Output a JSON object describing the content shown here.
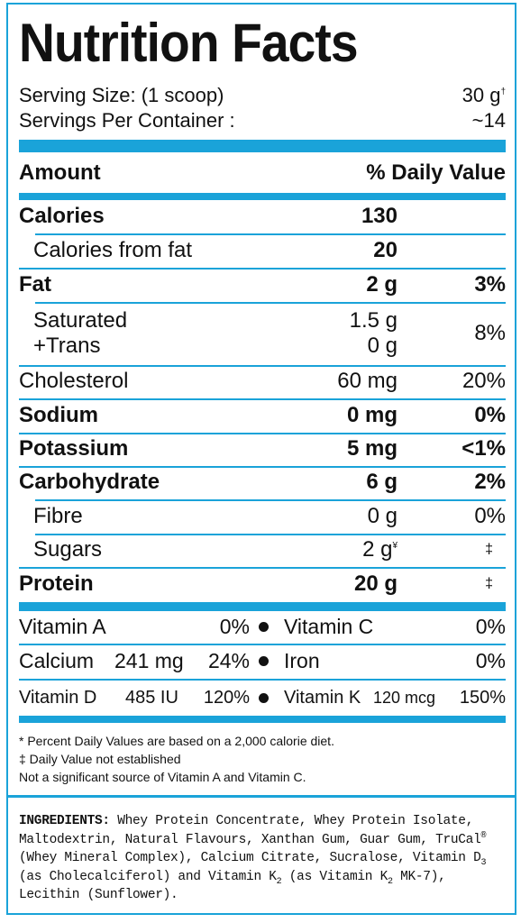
{
  "title": "Nutrition Facts",
  "serving": {
    "size_label": "Serving Size: (1 scoop)",
    "size_value": "30 g",
    "size_mark": "†",
    "per_container_label": "Servings Per Container :",
    "per_container_value": "~14"
  },
  "header": {
    "amount": "Amount",
    "daily_value": "% Daily Value"
  },
  "rows": {
    "calories": {
      "label": "Calories",
      "amount": "130"
    },
    "calories_fat": {
      "label": "Calories from fat",
      "amount": "20"
    },
    "fat": {
      "label": "Fat",
      "amount": "2 g",
      "dv": "3%"
    },
    "saturated": {
      "label": "Saturated",
      "amount": "1.5 g"
    },
    "trans": {
      "label": "+Trans",
      "amount": "0 g",
      "dv": "8%"
    },
    "cholesterol": {
      "label": "Cholesterol",
      "amount": "60 mg",
      "dv": "20%"
    },
    "sodium": {
      "label": "Sodium",
      "amount": "0 mg",
      "dv": "0%"
    },
    "potassium": {
      "label": "Potassium",
      "amount": "5 mg",
      "dv": "<1%"
    },
    "carbohydrate": {
      "label": "Carbohydrate",
      "amount": "6 g",
      "dv": "2%"
    },
    "fibre": {
      "label": "Fibre",
      "amount": "0 g",
      "dv": "0%"
    },
    "sugars": {
      "label": "Sugars",
      "amount": "2 g",
      "mark": "¥",
      "dv": "‡"
    },
    "protein": {
      "label": "Protein",
      "amount": "20 g",
      "dv": "‡"
    }
  },
  "vitamins": {
    "vitamin_a": {
      "label": "Vitamin A",
      "dv": "0%"
    },
    "vitamin_c": {
      "label": "Vitamin C",
      "dv": "0%"
    },
    "calcium": {
      "label": "Calcium",
      "amount": "241 mg",
      "dv": "24%"
    },
    "iron": {
      "label": "Iron",
      "dv": "0%"
    },
    "vitamin_d": {
      "label": "Vitamin D",
      "amount": "485 IU",
      "dv": "120%"
    },
    "vitamin_k": {
      "label": "Vitamin K",
      "amount": "120 mcg",
      "dv": "150%"
    }
  },
  "footnotes": {
    "percent": "* Percent Daily Values are based on a 2,000 calorie diet.",
    "not_established": "‡ Daily Value not established",
    "not_significant": "Not a significant source of Vitamin A and Vitamin C."
  },
  "ingredients": {
    "label": "INGREDIENTS:",
    "part1": " Whey Protein Concentrate, Whey Protein Isolate, Maltodextrin, Natural Flavours, Xanthan Gum, Guar Gum, TruCal",
    "reg": "®",
    "part2": " (Whey Mineral Complex), Calcium Citrate, Sucralose, Vitamin D",
    "sub3": "3",
    "part3": " (as Cholecalciferol) and Vitamin K",
    "sub2a": "2",
    "part4": " (as Vitamin K",
    "sub2b": "2",
    "part5": " MK-7), Lecithin (Sunflower)."
  },
  "colors": {
    "accent": "#1aa3d9",
    "text": "#111111"
  }
}
